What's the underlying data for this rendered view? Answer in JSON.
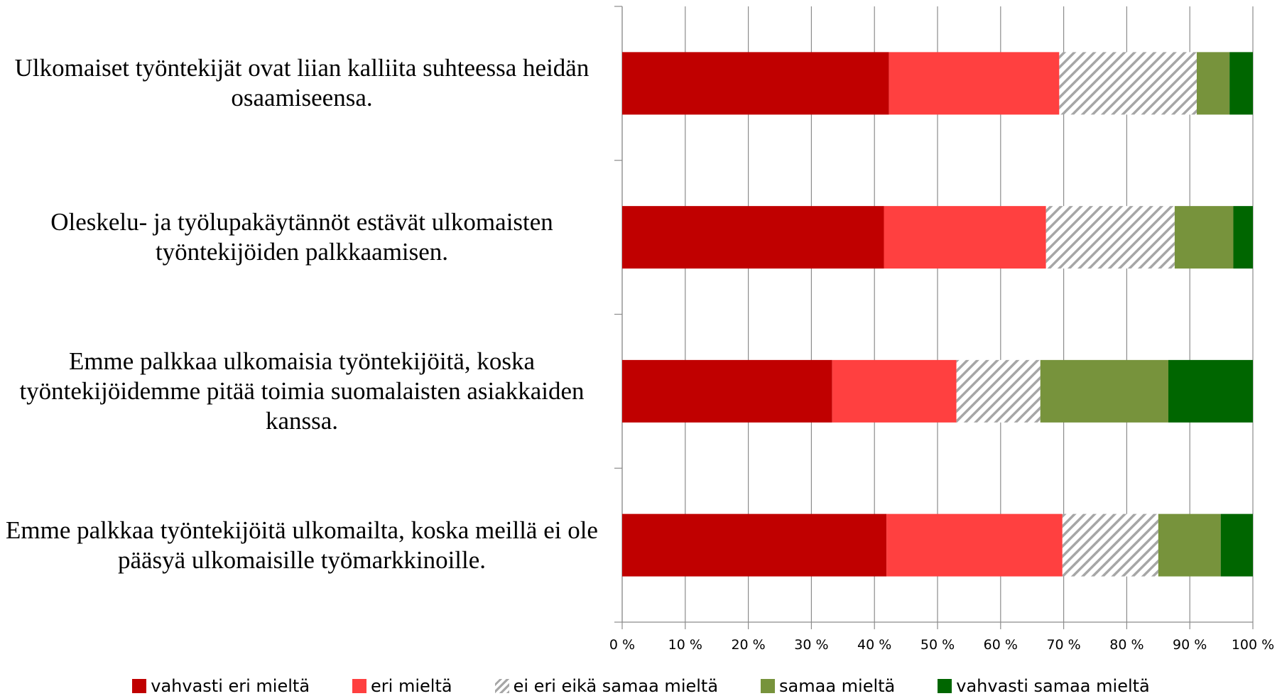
{
  "chart_data": {
    "type": "stacked-barh",
    "categories": [
      "Ulkomaiset työntekijät ovat liian kalliita suhteessa heidän osaamiseensa.",
      "Oleskelu- ja työlupakäytännöt estävät ulkomaisten työntekijöiden palkkaamisen.",
      "Emme palkkaa ulkomaisia työntekijöitä, koska työntekijöidemme pitää toimia suomalaisten asiakkaiden kanssa.",
      "Emme palkkaa työntekijöitä ulkomailta, koska meillä ei ole pääsyä ulkomaisille työmarkkinoille."
    ],
    "series": [
      {
        "name": "vahvasti eri mieltä",
        "color": "#c00000",
        "values": [
          42.3,
          41.5,
          33.3,
          41.9
        ]
      },
      {
        "name": "eri mieltä",
        "color": "#ff4040",
        "values": [
          27.0,
          25.7,
          19.7,
          27.9
        ]
      },
      {
        "name": "ei eri eikä samaa mieltä",
        "color": "#a6a6a6",
        "hatch": true,
        "values": [
          21.8,
          20.4,
          13.3,
          15.2
        ]
      },
      {
        "name": "samaa mieltä",
        "color": "#77933c",
        "values": [
          5.2,
          9.3,
          20.3,
          9.9
        ]
      },
      {
        "name": "vahvasti samaa mieltä",
        "color": "#006600",
        "values": [
          3.7,
          3.1,
          13.4,
          5.1
        ]
      }
    ],
    "xlim": [
      0,
      100
    ],
    "xticks": [
      {
        "value": 0,
        "label": "0 %"
      },
      {
        "value": 10,
        "label": "10 %"
      },
      {
        "value": 20,
        "label": "20 %"
      },
      {
        "value": 30,
        "label": "30 %"
      },
      {
        "value": 40,
        "label": "40 %"
      },
      {
        "value": 50,
        "label": "50 %"
      },
      {
        "value": 60,
        "label": "60 %"
      },
      {
        "value": 70,
        "label": "70 %"
      },
      {
        "value": 80,
        "label": "80 %"
      },
      {
        "value": 90,
        "label": "90 %"
      },
      {
        "value": 100,
        "label": "100 %"
      }
    ],
    "grid": true,
    "legend": "bottom"
  }
}
